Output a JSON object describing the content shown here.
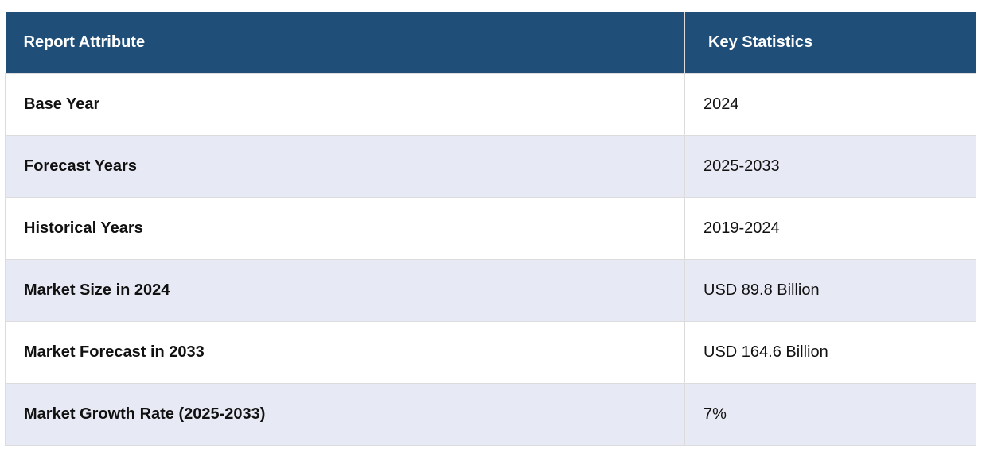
{
  "table": {
    "headers": [
      "Report Attribute",
      "Key Statistics"
    ],
    "rows": [
      [
        "Base Year",
        "2024"
      ],
      [
        "Forecast Years",
        "2025-2033"
      ],
      [
        "Historical Years",
        "2019-2024"
      ],
      [
        "Market Size in 2024",
        "USD 89.8 Billion"
      ],
      [
        "Market Forecast in 2033",
        "USD 164.6 Billion"
      ],
      [
        "Market Growth Rate (2025-2033)",
        "7%"
      ]
    ]
  },
  "colors": {
    "header_bg": "#1f4e79",
    "header_text": "#ffffff",
    "stripe_bg": "#e7e9f4",
    "border": "#dcdcdc"
  }
}
